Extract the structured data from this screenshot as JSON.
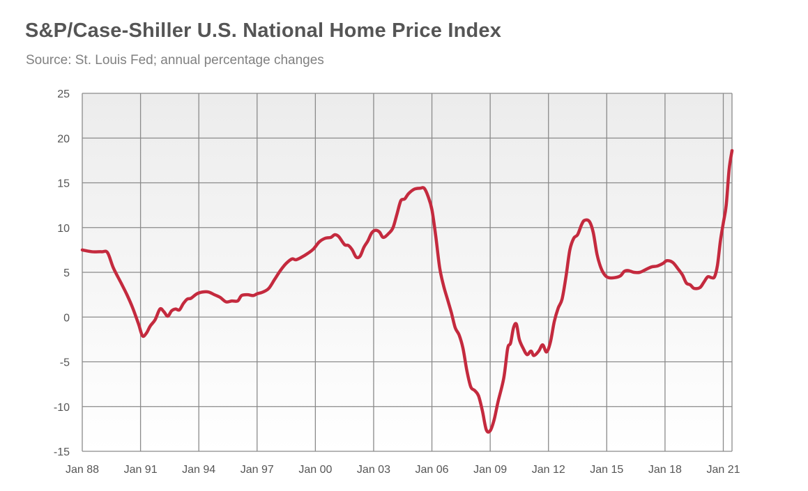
{
  "chart_data": {
    "type": "line",
    "title": "S&P/Case-Shiller U.S. National Home Price Index",
    "subtitle": "Source: St. Louis Fed; annual percentage changes",
    "xlabel": "",
    "ylabel": "",
    "ylim": [
      -15,
      25
    ],
    "yticks": [
      25,
      20,
      15,
      10,
      5,
      0,
      -5,
      -10,
      -15
    ],
    "xlim": [
      1988.0,
      2021.45
    ],
    "xticks": [
      {
        "label": "Jan 88",
        "value": 1988
      },
      {
        "label": "Jan 91",
        "value": 1991
      },
      {
        "label": "Jan 94",
        "value": 1994
      },
      {
        "label": "Jan 97",
        "value": 1997
      },
      {
        "label": "Jan 00",
        "value": 2000
      },
      {
        "label": "Jan 03",
        "value": 2003
      },
      {
        "label": "Jan 06",
        "value": 2006
      },
      {
        "label": "Jan 09",
        "value": 2009
      },
      {
        "label": "Jan 12",
        "value": 2012
      },
      {
        "label": "Jan 15",
        "value": 2015
      },
      {
        "label": "Jan 18",
        "value": 2018
      },
      {
        "label": "Jan 21",
        "value": 2021
      }
    ],
    "grid": true,
    "legend": "none",
    "line_color": "#c42a3e",
    "series": [
      {
        "name": "Annual % change",
        "x": [
          1988.0,
          1988.5,
          1989.0,
          1989.3,
          1989.6,
          1990.0,
          1990.3,
          1990.6,
          1990.9,
          1991.1,
          1991.3,
          1991.5,
          1991.75,
          1992.0,
          1992.2,
          1992.4,
          1992.6,
          1992.8,
          1993.0,
          1993.2,
          1993.4,
          1993.6,
          1993.9,
          1994.2,
          1994.5,
          1994.8,
          1995.1,
          1995.4,
          1995.7,
          1996.0,
          1996.2,
          1996.5,
          1996.8,
          1997.0,
          1997.3,
          1997.6,
          1997.9,
          1998.2,
          1998.5,
          1998.8,
          1999.0,
          1999.3,
          1999.6,
          1999.9,
          2000.2,
          2000.5,
          2000.8,
          2001.0,
          2001.2,
          2001.5,
          2001.7,
          2001.9,
          2002.1,
          2002.3,
          2002.5,
          2002.7,
          2002.9,
          2003.1,
          2003.3,
          2003.5,
          2003.8,
          2004.0,
          2004.2,
          2004.4,
          2004.6,
          2004.8,
          2005.1,
          2005.4,
          2005.6,
          2005.8,
          2006.0,
          2006.2,
          2006.4,
          2006.6,
          2006.8,
          2007.0,
          2007.2,
          2007.4,
          2007.6,
          2007.8,
          2008.0,
          2008.2,
          2008.4,
          2008.6,
          2008.8,
          2009.0,
          2009.2,
          2009.4,
          2009.7,
          2009.9,
          2010.05,
          2010.2,
          2010.35,
          2010.5,
          2010.7,
          2010.9,
          2011.1,
          2011.25,
          2011.5,
          2011.7,
          2011.9,
          2012.1,
          2012.3,
          2012.5,
          2012.7,
          2012.9,
          2013.1,
          2013.3,
          2013.5,
          2013.7,
          2013.85,
          2014.1,
          2014.3,
          2014.5,
          2014.7,
          2014.9,
          2015.1,
          2015.4,
          2015.7,
          2015.9,
          2016.1,
          2016.4,
          2016.7,
          2017.0,
          2017.3,
          2017.6,
          2017.9,
          2018.1,
          2018.4,
          2018.7,
          2018.9,
          2019.1,
          2019.3,
          2019.5,
          2019.8,
          2020.0,
          2020.2,
          2020.4,
          2020.55,
          2020.7,
          2020.85,
          2021.0,
          2021.15,
          2021.3,
          2021.45
        ],
        "values": [
          7.5,
          7.3,
          7.3,
          7.2,
          5.5,
          3.8,
          2.5,
          1.0,
          -0.8,
          -2.1,
          -1.8,
          -1.0,
          -0.3,
          0.9,
          0.6,
          0.1,
          0.7,
          0.9,
          0.8,
          1.5,
          2.0,
          2.1,
          2.6,
          2.8,
          2.8,
          2.5,
          2.2,
          1.7,
          1.8,
          1.8,
          2.4,
          2.5,
          2.4,
          2.6,
          2.8,
          3.2,
          4.2,
          5.2,
          6.0,
          6.5,
          6.4,
          6.7,
          7.1,
          7.6,
          8.4,
          8.8,
          8.9,
          9.2,
          9.0,
          8.1,
          8.0,
          7.5,
          6.7,
          6.8,
          7.8,
          8.5,
          9.4,
          9.7,
          9.5,
          8.9,
          9.4,
          10.0,
          11.5,
          13.0,
          13.2,
          13.8,
          14.3,
          14.4,
          14.4,
          13.5,
          12.0,
          9.0,
          5.5,
          3.5,
          2.0,
          0.5,
          -1.2,
          -2.0,
          -3.5,
          -6.0,
          -7.8,
          -8.2,
          -8.8,
          -10.5,
          -12.6,
          -12.7,
          -11.5,
          -9.5,
          -6.8,
          -3.5,
          -2.9,
          -1.2,
          -0.8,
          -2.5,
          -3.5,
          -4.2,
          -3.8,
          -4.3,
          -3.8,
          -3.1,
          -3.9,
          -2.8,
          -0.5,
          1.0,
          2.0,
          4.5,
          7.5,
          8.8,
          9.2,
          10.3,
          10.8,
          10.7,
          9.5,
          7.0,
          5.5,
          4.7,
          4.4,
          4.4,
          4.6,
          5.1,
          5.2,
          5.0,
          5.0,
          5.3,
          5.6,
          5.7,
          6.0,
          6.3,
          6.1,
          5.3,
          4.7,
          3.8,
          3.6,
          3.2,
          3.3,
          3.9,
          4.5,
          4.4,
          4.5,
          5.8,
          8.5,
          10.5,
          12.5,
          16.5,
          18.6
        ]
      }
    ]
  }
}
